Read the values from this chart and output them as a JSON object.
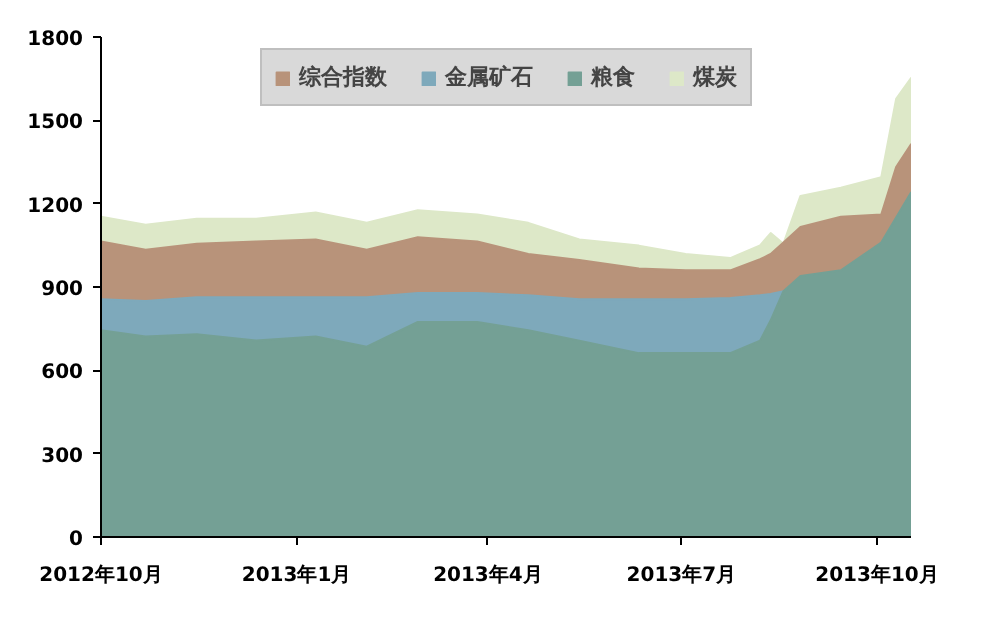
{
  "chart_data": {
    "type": "area",
    "x": [
      "2012-10-01",
      "2012-10-22",
      "2012-11-15",
      "2012-12-13",
      "2013-01-10",
      "2013-02-03",
      "2013-02-27",
      "2013-03-27",
      "2013-04-20",
      "2013-05-14",
      "2013-06-11",
      "2013-07-03",
      "2013-07-24",
      "2013-08-07",
      "2013-08-12",
      "2013-08-18",
      "2013-08-26",
      "2013-09-14",
      "2013-10-03",
      "2013-10-10",
      "2013-10-17"
    ],
    "series": [
      {
        "name": "煤炭",
        "color": "#dde8c8",
        "values": [
          1153,
          1124,
          1146,
          1146,
          1168,
          1131,
          1176,
          1161,
          1131,
          1071,
          1049,
          1019,
          1004,
          1050,
          1094,
          1056,
          1228,
          1257,
          1295,
          1577,
          1652
        ]
      },
      {
        "name": "综合指数",
        "color": "#b8937a",
        "values": [
          1064,
          1034,
          1056,
          1064,
          1071,
          1034,
          1079,
          1064,
          1019,
          997,
          967,
          960,
          960,
          1000,
          1019,
          1060,
          1116,
          1153,
          1161,
          1332,
          1414
        ]
      },
      {
        "name": "金属矿石",
        "color": "#7ea9bb",
        "values": [
          856,
          850,
          863,
          863,
          863,
          863,
          878,
          878,
          870,
          856,
          856,
          856,
          860,
          870,
          875,
          885,
          null,
          null,
          null,
          null,
          null
        ]
      },
      {
        "name": "粮食",
        "color": "#74a095",
        "values": [
          744,
          722,
          730,
          707,
          722,
          685,
          774,
          774,
          744,
          707,
          662,
          662,
          662,
          707,
          780,
          885,
          940,
          960,
          1060,
          1150,
          1240
        ]
      }
    ],
    "xlim": [
      "2012-10-01",
      "2013-10-17"
    ],
    "xticks": [
      {
        "value": "2012-10-01",
        "label": "2012年10月"
      },
      {
        "value": "2013-01-01",
        "label": "2013年1月"
      },
      {
        "value": "2013-04-01",
        "label": "2013年4月"
      },
      {
        "value": "2013-07-01",
        "label": "2013年7月"
      },
      {
        "value": "2013-10-01",
        "label": "2013年10月"
      }
    ],
    "ylim": [
      0,
      1800
    ],
    "yticks": [
      0,
      300,
      600,
      900,
      1200,
      1500,
      1800
    ],
    "grid": false,
    "legend": "top"
  }
}
